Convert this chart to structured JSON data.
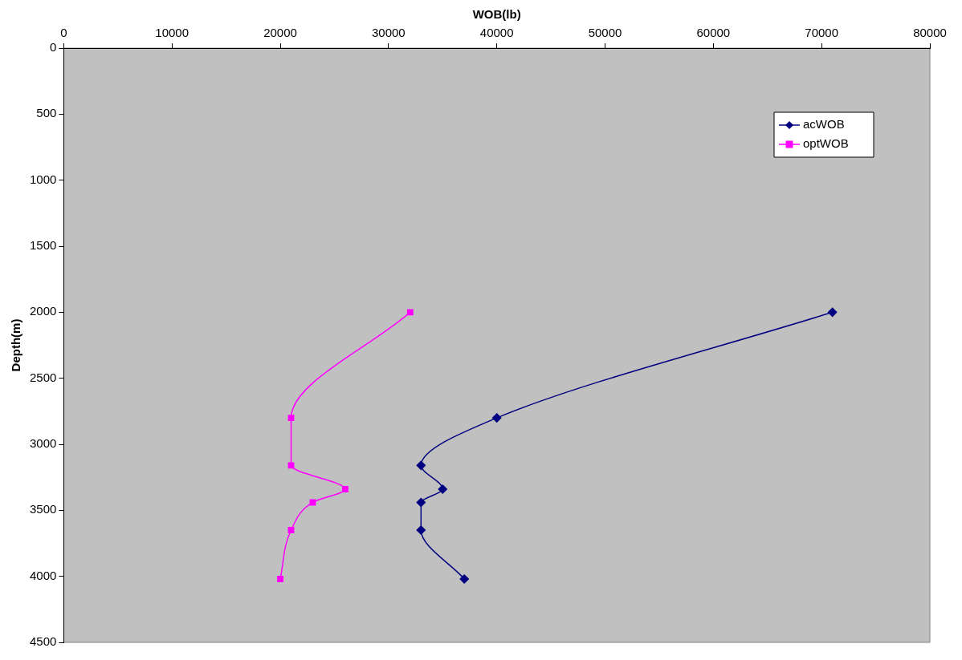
{
  "chart_data": {
    "type": "line",
    "xlabel": "WOB(lb)",
    "ylabel": "Depth(m)",
    "xlim": [
      0,
      80000
    ],
    "xticks": [
      0,
      10000,
      20000,
      30000,
      40000,
      50000,
      60000,
      70000,
      80000
    ],
    "ylim": [
      4500,
      0
    ],
    "yticks": [
      0,
      500,
      1000,
      1500,
      2000,
      2500,
      3000,
      3500,
      4000,
      4500
    ],
    "grid": false,
    "legend": "top right",
    "series": [
      {
        "name": "acWOB",
        "color": "#000080",
        "marker": "diamond",
        "x": [
          71000,
          40000,
          33000,
          35000,
          33000,
          33000,
          37000
        ],
        "values": [
          2000,
          2800,
          3160,
          3340,
          3440,
          3650,
          4020
        ]
      },
      {
        "name": "optWOB",
        "color": "#ff00ff",
        "marker": "square",
        "x": [
          32000,
          21000,
          21000,
          26000,
          23000,
          21000,
          20000
        ],
        "values": [
          2000,
          2800,
          3160,
          3340,
          3440,
          3650,
          4020
        ]
      }
    ]
  }
}
